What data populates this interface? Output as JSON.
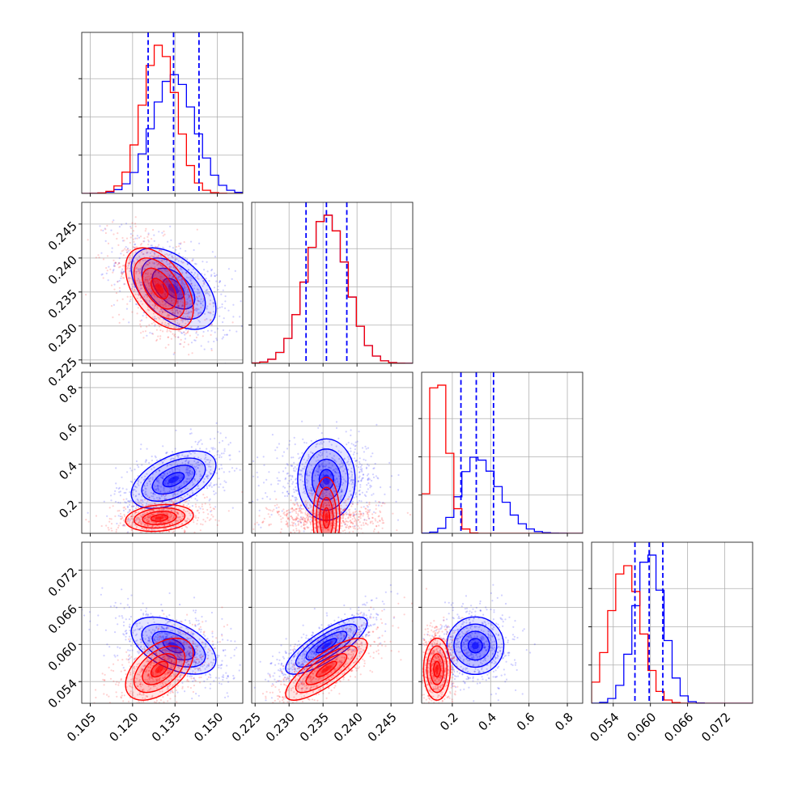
{
  "chart_data": {
    "type": "corner",
    "params": [
      {
        "ticks": [
          0.105,
          0.12,
          0.135,
          0.15
        ],
        "tick_labels": [
          "0.105",
          "0.120",
          "0.135",
          "0.150"
        ],
        "range": [
          0.102,
          0.159
        ]
      },
      {
        "ticks": [
          0.225,
          0.23,
          0.235,
          0.24,
          0.245
        ],
        "tick_labels": [
          "0.225",
          "0.230",
          "0.235",
          "0.240",
          "0.245"
        ],
        "range": [
          0.2245,
          0.2482
        ]
      },
      {
        "ticks": [
          0.2,
          0.4,
          0.6,
          0.8
        ],
        "tick_labels": [
          "0.2",
          "0.4",
          "0.6",
          "0.8"
        ],
        "range": [
          0.04,
          0.88
        ]
      },
      {
        "ticks": [
          0.054,
          0.06,
          0.066,
          0.072
        ],
        "tick_labels": [
          "0.054",
          "0.060",
          "0.066",
          "0.072"
        ],
        "range": [
          0.0505,
          0.0765
        ]
      }
    ],
    "series": [
      {
        "color": "#0000ff",
        "mean": [
          0.1345,
          0.2355,
          0.32,
          0.0598
        ],
        "sd": [
          0.0075,
          0.003,
          0.075,
          0.0023
        ],
        "corr": [
          [
            1,
            -0.5,
            0.5,
            -0.5
          ],
          [
            -0.5,
            1,
            0.0,
            0.8
          ],
          [
            0.5,
            0.0,
            1,
            0.0
          ],
          [
            -0.5,
            0.8,
            0.0,
            1
          ]
        ]
      },
      {
        "color": "#ff0000",
        "mean": [
          0.1295,
          0.2355,
          0.12,
          0.056
        ],
        "sd": [
          0.006,
          0.003,
          0.035,
          0.0025
        ],
        "corr": [
          [
            1,
            -0.5,
            0.2,
            0.5
          ],
          [
            -0.5,
            1,
            0.0,
            0.8
          ],
          [
            0.2,
            0.0,
            1,
            0.0
          ],
          [
            0.5,
            0.8,
            0.0,
            1
          ]
        ]
      }
    ],
    "quantile_lines": {
      "color": "#0000ff",
      "style": "dashed",
      "values": [
        [
          0.1255,
          0.1345,
          0.1435
        ],
        [
          0.2325,
          0.2355,
          0.2385
        ],
        [
          0.245,
          0.325,
          0.415
        ],
        [
          0.0575,
          0.0598,
          0.062
        ]
      ]
    },
    "hist_bins": 20,
    "grid": true
  }
}
